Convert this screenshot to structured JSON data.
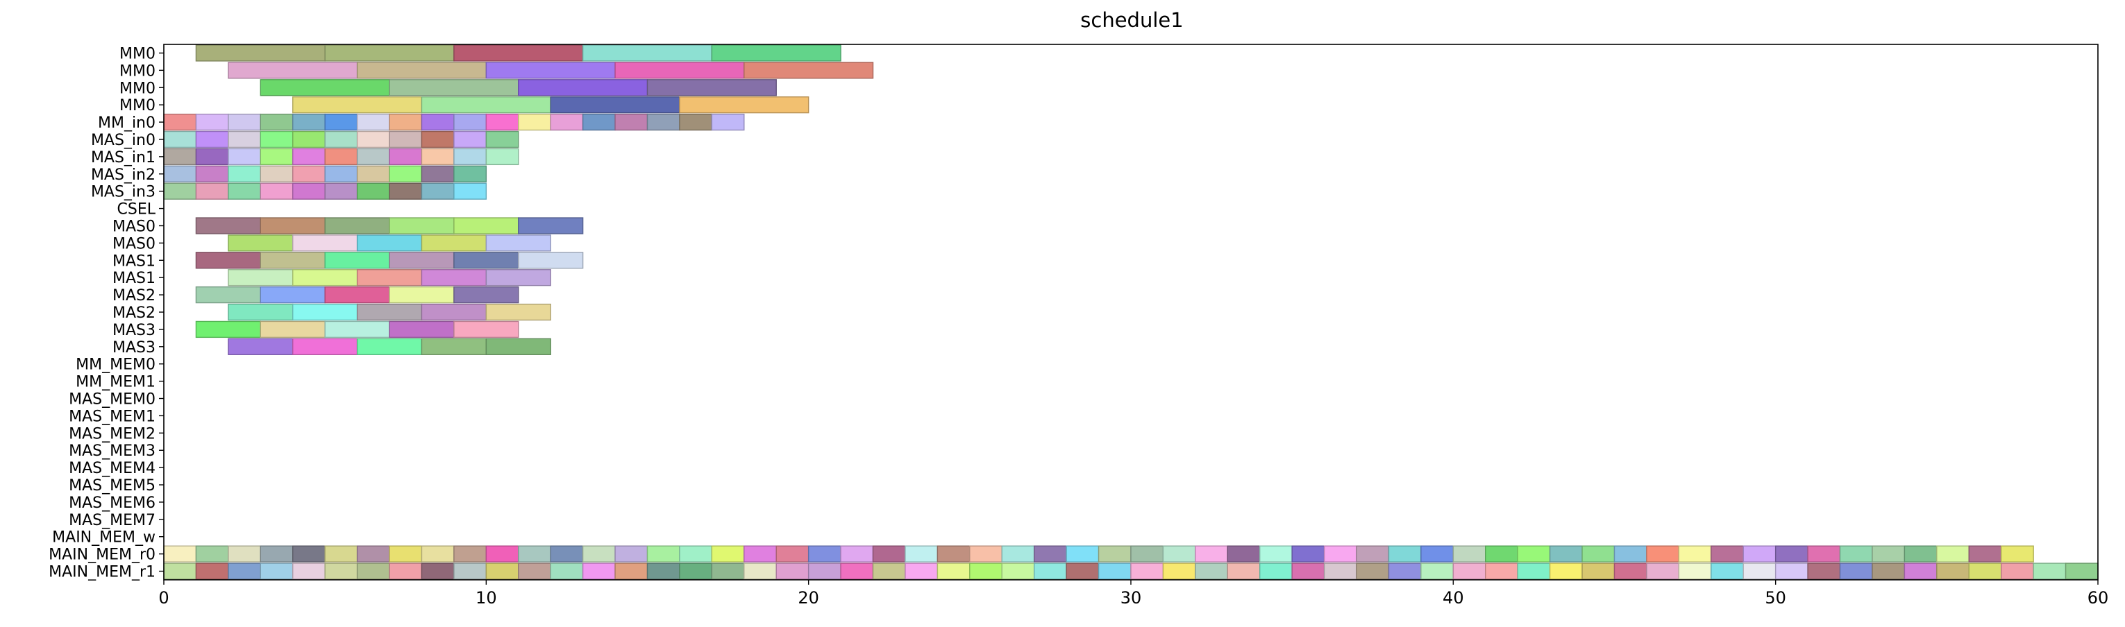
{
  "chart_data": {
    "type": "gantt",
    "title": "schedule1",
    "xlabel": "",
    "ylabel": "",
    "xlim": [
      0,
      60
    ],
    "xticks": [
      0,
      10,
      20,
      30,
      40,
      50,
      60
    ],
    "grid": false,
    "legend": "none",
    "rows": [
      "MM0",
      "MM0",
      "MM0",
      "MM0",
      "MM_in0",
      "MAS_in0",
      "MAS_in1",
      "MAS_in2",
      "MAS_in3",
      "CSEL",
      "MAS0",
      "MAS0",
      "MAS1",
      "MAS1",
      "MAS2",
      "MAS2",
      "MAS3",
      "MAS3",
      "MM_MEM0",
      "MM_MEM1",
      "MAS_MEM0",
      "MAS_MEM1",
      "MAS_MEM2",
      "MAS_MEM3",
      "MAS_MEM4",
      "MAS_MEM5",
      "MAS_MEM6",
      "MAS_MEM7",
      "MAIN_MEM_w",
      "MAIN_MEM_r0",
      "MAIN_MEM_r1"
    ],
    "tasks": [
      {
        "row": 0,
        "start": 1,
        "end": 5,
        "color": "#a8b07a"
      },
      {
        "row": 0,
        "start": 5,
        "end": 9,
        "color": "#a6b87a"
      },
      {
        "row": 0,
        "start": 9,
        "end": 13,
        "color": "#b85a70"
      },
      {
        "row": 0,
        "start": 13,
        "end": 17,
        "color": "#8de0d2"
      },
      {
        "row": 0,
        "start": 17,
        "end": 21,
        "color": "#62d48a"
      },
      {
        "row": 1,
        "start": 2,
        "end": 6,
        "color": "#e0a8cf"
      },
      {
        "row": 1,
        "start": 6,
        "end": 10,
        "color": "#c8b890"
      },
      {
        "row": 1,
        "start": 10,
        "end": 14,
        "color": "#9f7af0"
      },
      {
        "row": 1,
        "start": 14,
        "end": 18,
        "color": "#e866b8"
      },
      {
        "row": 1,
        "start": 18,
        "end": 22,
        "color": "#e08878"
      },
      {
        "row": 2,
        "start": 3,
        "end": 7,
        "color": "#6ad86a"
      },
      {
        "row": 2,
        "start": 7,
        "end": 11,
        "color": "#9dc49a"
      },
      {
        "row": 2,
        "start": 11,
        "end": 15,
        "color": "#8a62e0"
      },
      {
        "row": 2,
        "start": 15,
        "end": 19,
        "color": "#8570a8"
      },
      {
        "row": 3,
        "start": 4,
        "end": 8,
        "color": "#e8dc7a"
      },
      {
        "row": 3,
        "start": 8,
        "end": 12,
        "color": "#a0e8a0"
      },
      {
        "row": 3,
        "start": 12,
        "end": 16,
        "color": "#5a68b0"
      },
      {
        "row": 3,
        "start": 16,
        "end": 20,
        "color": "#f2c070"
      },
      {
        "row": 4,
        "start": 0,
        "end": 1,
        "color": "#f09090"
      },
      {
        "row": 4,
        "start": 1,
        "end": 2,
        "color": "#d8b8f8"
      },
      {
        "row": 4,
        "start": 2,
        "end": 3,
        "color": "#d0c8f0"
      },
      {
        "row": 4,
        "start": 3,
        "end": 4,
        "color": "#90c890"
      },
      {
        "row": 4,
        "start": 4,
        "end": 5,
        "color": "#7ab0c8"
      },
      {
        "row": 4,
        "start": 5,
        "end": 6,
        "color": "#5a98e8"
      },
      {
        "row": 4,
        "start": 6,
        "end": 7,
        "color": "#d8d8f0"
      },
      {
        "row": 4,
        "start": 7,
        "end": 8,
        "color": "#f0b088"
      },
      {
        "row": 4,
        "start": 8,
        "end": 9,
        "color": "#a878e8"
      },
      {
        "row": 4,
        "start": 9,
        "end": 10,
        "color": "#a8a8f0"
      },
      {
        "row": 4,
        "start": 10,
        "end": 11,
        "color": "#f870d0"
      },
      {
        "row": 4,
        "start": 11,
        "end": 12,
        "color": "#f8f0a0"
      },
      {
        "row": 4,
        "start": 12,
        "end": 13,
        "color": "#e8a0d8"
      },
      {
        "row": 4,
        "start": 13,
        "end": 14,
        "color": "#7098c8"
      },
      {
        "row": 4,
        "start": 14,
        "end": 15,
        "color": "#c080b0"
      },
      {
        "row": 4,
        "start": 15,
        "end": 16,
        "color": "#90a0b8"
      },
      {
        "row": 4,
        "start": 16,
        "end": 17,
        "color": "#a09078"
      },
      {
        "row": 4,
        "start": 17,
        "end": 18,
        "color": "#c0b8f8"
      },
      {
        "row": 5,
        "start": 0,
        "end": 1,
        "color": "#a8e0d8"
      },
      {
        "row": 5,
        "start": 1,
        "end": 2,
        "color": "#c090f8"
      },
      {
        "row": 5,
        "start": 2,
        "end": 3,
        "color": "#d8d0e0"
      },
      {
        "row": 5,
        "start": 3,
        "end": 4,
        "color": "#88f888"
      },
      {
        "row": 5,
        "start": 4,
        "end": 5,
        "color": "#98e870"
      },
      {
        "row": 5,
        "start": 5,
        "end": 6,
        "color": "#a8e0c8"
      },
      {
        "row": 5,
        "start": 6,
        "end": 7,
        "color": "#f0d8d0"
      },
      {
        "row": 5,
        "start": 7,
        "end": 8,
        "color": "#d0b8b8"
      },
      {
        "row": 5,
        "start": 8,
        "end": 9,
        "color": "#c07868"
      },
      {
        "row": 5,
        "start": 9,
        "end": 10,
        "color": "#c8a8f8"
      },
      {
        "row": 5,
        "start": 10,
        "end": 11,
        "color": "#88d098"
      },
      {
        "row": 6,
        "start": 0,
        "end": 1,
        "color": "#b0a8a0"
      },
      {
        "row": 6,
        "start": 1,
        "end": 2,
        "color": "#9868c0"
      },
      {
        "row": 6,
        "start": 2,
        "end": 3,
        "color": "#c8c8f8"
      },
      {
        "row": 6,
        "start": 3,
        "end": 4,
        "color": "#a8f880"
      },
      {
        "row": 6,
        "start": 4,
        "end": 5,
        "color": "#e080e0"
      },
      {
        "row": 6,
        "start": 5,
        "end": 6,
        "color": "#f09080"
      },
      {
        "row": 6,
        "start": 6,
        "end": 7,
        "color": "#b8c8c8"
      },
      {
        "row": 6,
        "start": 7,
        "end": 8,
        "color": "#d878d0"
      },
      {
        "row": 6,
        "start": 8,
        "end": 9,
        "color": "#f8c8a8"
      },
      {
        "row": 6,
        "start": 9,
        "end": 10,
        "color": "#b0d8e8"
      },
      {
        "row": 6,
        "start": 10,
        "end": 11,
        "color": "#b0f0c8"
      },
      {
        "row": 7,
        "start": 0,
        "end": 1,
        "color": "#a8c0e0"
      },
      {
        "row": 7,
        "start": 1,
        "end": 2,
        "color": "#c880c8"
      },
      {
        "row": 7,
        "start": 2,
        "end": 3,
        "color": "#90f0d0"
      },
      {
        "row": 7,
        "start": 3,
        "end": 4,
        "color": "#e0d0c0"
      },
      {
        "row": 7,
        "start": 4,
        "end": 5,
        "color": "#f0a0b0"
      },
      {
        "row": 7,
        "start": 5,
        "end": 6,
        "color": "#98b8e8"
      },
      {
        "row": 7,
        "start": 6,
        "end": 7,
        "color": "#d8c8a0"
      },
      {
        "row": 7,
        "start": 7,
        "end": 8,
        "color": "#98f880"
      },
      {
        "row": 7,
        "start": 8,
        "end": 9,
        "color": "#907898"
      },
      {
        "row": 7,
        "start": 9,
        "end": 10,
        "color": "#70c0a0"
      },
      {
        "row": 8,
        "start": 0,
        "end": 1,
        "color": "#a0d0a0"
      },
      {
        "row": 8,
        "start": 1,
        "end": 2,
        "color": "#e8a0b8"
      },
      {
        "row": 8,
        "start": 2,
        "end": 3,
        "color": "#88d8a8"
      },
      {
        "row": 8,
        "start": 3,
        "end": 4,
        "color": "#f0a0d0"
      },
      {
        "row": 8,
        "start": 4,
        "end": 5,
        "color": "#d078d0"
      },
      {
        "row": 8,
        "start": 5,
        "end": 6,
        "color": "#b890c8"
      },
      {
        "row": 8,
        "start": 6,
        "end": 7,
        "color": "#70c870"
      },
      {
        "row": 8,
        "start": 7,
        "end": 8,
        "color": "#907870"
      },
      {
        "row": 8,
        "start": 8,
        "end": 9,
        "color": "#80b8c8"
      },
      {
        "row": 8,
        "start": 9,
        "end": 10,
        "color": "#80e0f8"
      },
      {
        "row": 10,
        "start": 1,
        "end": 3,
        "color": "#a07888"
      },
      {
        "row": 10,
        "start": 3,
        "end": 5,
        "color": "#c09070"
      },
      {
        "row": 10,
        "start": 5,
        "end": 7,
        "color": "#90b080"
      },
      {
        "row": 10,
        "start": 7,
        "end": 9,
        "color": "#a8e880"
      },
      {
        "row": 10,
        "start": 9,
        "end": 11,
        "color": "#b8f078"
      },
      {
        "row": 10,
        "start": 11,
        "end": 13,
        "color": "#7080c0"
      },
      {
        "row": 11,
        "start": 2,
        "end": 4,
        "color": "#b0e070"
      },
      {
        "row": 11,
        "start": 4,
        "end": 6,
        "color": "#f0d8e8"
      },
      {
        "row": 11,
        "start": 6,
        "end": 8,
        "color": "#70d8e8"
      },
      {
        "row": 11,
        "start": 8,
        "end": 10,
        "color": "#d0e070"
      },
      {
        "row": 11,
        "start": 10,
        "end": 12,
        "color": "#c0c8f8"
      },
      {
        "row": 12,
        "start": 1,
        "end": 3,
        "color": "#a86880"
      },
      {
        "row": 12,
        "start": 3,
        "end": 5,
        "color": "#c0c090"
      },
      {
        "row": 12,
        "start": 5,
        "end": 7,
        "color": "#68f0a0"
      },
      {
        "row": 12,
        "start": 7,
        "end": 9,
        "color": "#b898b8"
      },
      {
        "row": 12,
        "start": 9,
        "end": 11,
        "color": "#7080b0"
      },
      {
        "row": 12,
        "start": 11,
        "end": 13,
        "color": "#d0dcf0"
      },
      {
        "row": 13,
        "start": 2,
        "end": 4,
        "color": "#c8f0c0"
      },
      {
        "row": 13,
        "start": 4,
        "end": 6,
        "color": "#d8f890"
      },
      {
        "row": 13,
        "start": 6,
        "end": 8,
        "color": "#f0a098"
      },
      {
        "row": 13,
        "start": 8,
        "end": 10,
        "color": "#d088d8"
      },
      {
        "row": 13,
        "start": 10,
        "end": 12,
        "color": "#c0a8e0"
      },
      {
        "row": 14,
        "start": 1,
        "end": 3,
        "color": "#a0d0b0"
      },
      {
        "row": 14,
        "start": 3,
        "end": 5,
        "color": "#88a8f8"
      },
      {
        "row": 14,
        "start": 5,
        "end": 7,
        "color": "#e06098"
      },
      {
        "row": 14,
        "start": 7,
        "end": 9,
        "color": "#e8f8a0"
      },
      {
        "row": 14,
        "start": 9,
        "end": 11,
        "color": "#8878b0"
      },
      {
        "row": 15,
        "start": 2,
        "end": 4,
        "color": "#80e8c0"
      },
      {
        "row": 15,
        "start": 4,
        "end": 6,
        "color": "#88f8f0"
      },
      {
        "row": 15,
        "start": 6,
        "end": 8,
        "color": "#b0a8b0"
      },
      {
        "row": 15,
        "start": 8,
        "end": 10,
        "color": "#c090c8"
      },
      {
        "row": 15,
        "start": 10,
        "end": 12,
        "color": "#e8d898"
      },
      {
        "row": 16,
        "start": 1,
        "end": 3,
        "color": "#70f070"
      },
      {
        "row": 16,
        "start": 3,
        "end": 5,
        "color": "#e8d8a0"
      },
      {
        "row": 16,
        "start": 5,
        "end": 7,
        "color": "#b8f0e0"
      },
      {
        "row": 16,
        "start": 7,
        "end": 9,
        "color": "#c070c8"
      },
      {
        "row": 16,
        "start": 9,
        "end": 11,
        "color": "#f8a8c0"
      },
      {
        "row": 17,
        "start": 2,
        "end": 4,
        "color": "#a078e0"
      },
      {
        "row": 17,
        "start": 4,
        "end": 6,
        "color": "#f070d8"
      },
      {
        "row": 17,
        "start": 6,
        "end": 8,
        "color": "#70f8a8"
      },
      {
        "row": 17,
        "start": 8,
        "end": 10,
        "color": "#90c080"
      },
      {
        "row": 17,
        "start": 10,
        "end": 12,
        "color": "#80b878"
      }
    ],
    "memory_colors": {
      "MAIN_MEM_r0": [
        "#f8f0c0",
        "#a0d0a0",
        "#e0e0c0",
        "#98a8b0",
        "#787888",
        "#d8d890",
        "#b090a8",
        "#e8e070",
        "#e8e0a0",
        "#c0a090",
        "#f060b8",
        "#a8c8c0",
        "#7890b8",
        "#c8e0c0",
        "#c0b0e0",
        "#a8f0a0",
        "#a0f0c8",
        "#e0f870",
        "#e080e0",
        "#e08098",
        "#8090e0",
        "#e0a8f0",
        "#b06890",
        "#c0f0f0",
        "#c09080",
        "#f8c0a8",
        "#a8e8e0",
        "#9078b0",
        "#80e0f8",
        "#b8d0a0",
        "#a0c0a8",
        "#b8e8d0",
        "#f8b0e8",
        "#906898",
        "#b0f8e0",
        "#8070d0",
        "#f8a8f0",
        "#c0a0b8",
        "#80d8d8",
        "#7090e8",
        "#c0d8c0",
        "#70d870",
        "#98f878",
        "#80c0c0",
        "#90e090",
        "#88c0e0",
        "#f89078",
        "#f8f8a0",
        "#b87098",
        "#d0a8f8",
        "#9070c0",
        "#e070b0",
        "#90d8b0",
        "#a8d0a8",
        "#80c090",
        "#d8f8a0",
        "#b07090",
        "#e8e870"
      ],
      "MAIN_MEM_r1": [
        "#c0e0a0",
        "#c07070",
        "#80a0d0",
        "#a0d0e8",
        "#e8d0e0",
        "#d0d8a0",
        "#b0c090",
        "#f0a0a8",
        "#906878",
        "#b8c8c8",
        "#d8d070",
        "#c0a098",
        "#a0e0c0",
        "#f098f0",
        "#e0a080",
        "#709890",
        "#68b080",
        "#90b890",
        "#e8e8c8",
        "#e0a0d0",
        "#c8a0d8",
        "#f070c0",
        "#c8c890",
        "#f8a8f0",
        "#e8f890",
        "#b0f870",
        "#c8f8a0",
        "#90e8e0",
        "#b07070",
        "#80d8f0",
        "#f8b0d8",
        "#f8e870",
        "#b0d0c0",
        "#f0b8b0",
        "#80f0d0",
        "#d870b0",
        "#d8c8d0",
        "#b0a088",
        "#9090e0",
        "#b8f0c0",
        "#f0b0d0",
        "#f8a8a8",
        "#80f0c8",
        "#f8f070",
        "#d8c870",
        "#d07090",
        "#e8b0d0",
        "#f0f8d0",
        "#80e0e8",
        "#e8e8f0",
        "#d8c8f8",
        "#b07080",
        "#8090d8",
        "#a89880",
        "#d080d8",
        "#c8b878",
        "#d8e070",
        "#f0a0a8",
        "#a8e8b8",
        "#90d090",
        "#f8c8a8"
      ]
    }
  }
}
